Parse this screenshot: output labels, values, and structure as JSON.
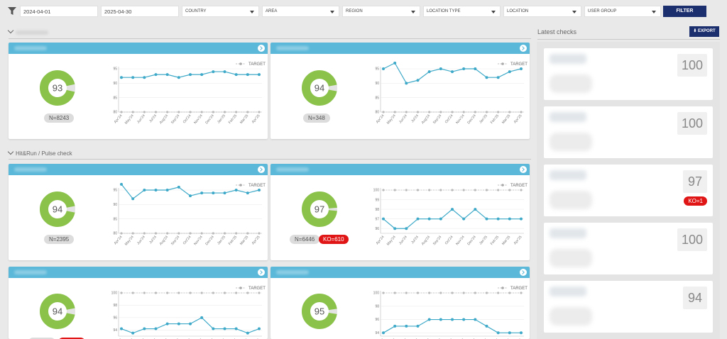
{
  "filters": {
    "date_from": "2024-04-01",
    "date_to": "2025-04-30",
    "selects": [
      "COUNTRY",
      "AREA",
      "REGION",
      "LOCATION TYPE",
      "LOCATION",
      "USER GROUP"
    ],
    "filter_button": "FILTER"
  },
  "section2": {
    "title": "Hit&Run / Pulse check"
  },
  "legend": {
    "target": "TARGET"
  },
  "months": [
    "Apr'24",
    "May'24",
    "Jun'24",
    "Jul'24",
    "Aug'24",
    "Sep'24",
    "Oct'24",
    "Nov'24",
    "Dec'24",
    "Jan'25",
    "Feb'25",
    "Mar'25",
    "Apr'25"
  ],
  "cards": [
    {
      "score": 93,
      "n": "N=8243",
      "ko": ""
    },
    {
      "score": 94,
      "n": "N=348",
      "ko": ""
    },
    {
      "score": 94,
      "n": "N=2395",
      "ko": ""
    },
    {
      "score": 97,
      "n": "N=6446",
      "ko": "KO=610"
    },
    {
      "score": 94,
      "n": "",
      "ko": ""
    },
    {
      "score": 95,
      "n": "",
      "ko": ""
    }
  ],
  "chart_data": [
    {
      "type": "line",
      "ylim": [
        80,
        95
      ],
      "yticks": [
        80,
        85,
        90,
        95
      ],
      "series": [
        {
          "values": [
            92,
            92,
            92,
            93,
            93,
            92,
            93,
            93,
            94,
            94,
            93,
            93,
            93
          ]
        },
        {
          "name": "TARGET",
          "values": [
            80,
            80,
            80,
            80,
            80,
            80,
            80,
            80,
            80,
            80,
            80,
            80,
            80
          ]
        }
      ]
    },
    {
      "type": "line",
      "ylim": [
        80,
        95
      ],
      "yticks": [
        80,
        85,
        90,
        95
      ],
      "series": [
        {
          "values": [
            95,
            97,
            90,
            91,
            94,
            95,
            94,
            95,
            95,
            92,
            92,
            94,
            95
          ]
        },
        {
          "name": "TARGET",
          "values": [
            80,
            80,
            80,
            80,
            80,
            80,
            80,
            80,
            80,
            80,
            80,
            80,
            80
          ]
        }
      ]
    },
    {
      "type": "line",
      "ylim": [
        80,
        95
      ],
      "yticks": [
        80,
        85,
        90,
        95
      ],
      "series": [
        {
          "values": [
            97,
            92,
            95,
            95,
            95,
            96,
            93,
            94,
            94,
            94,
            95,
            94,
            95
          ]
        },
        {
          "name": "TARGET",
          "values": [
            80,
            80,
            80,
            80,
            80,
            80,
            80,
            80,
            80,
            80,
            80,
            80,
            80
          ]
        }
      ]
    },
    {
      "type": "line",
      "ylim": [
        95.5,
        100
      ],
      "yticks": [
        96,
        97,
        98,
        99,
        100
      ],
      "series": [
        {
          "values": [
            97,
            96,
            96,
            97,
            97,
            97,
            98,
            97,
            98,
            97,
            97,
            97,
            97
          ]
        },
        {
          "name": "TARGET",
          "values": [
            100,
            100,
            100,
            100,
            100,
            100,
            100,
            100,
            100,
            100,
            100,
            100,
            100
          ]
        }
      ]
    },
    {
      "type": "line",
      "ylim": [
        93,
        100
      ],
      "yticks": [
        94,
        96,
        98,
        100
      ],
      "series": [
        {
          "values": [
            94.2,
            93.5,
            94.2,
            94.2,
            95,
            95,
            95,
            96,
            94.2,
            94.2,
            94.2,
            93.5,
            94.2
          ]
        },
        {
          "name": "TARGET",
          "values": [
            100,
            100,
            100,
            100,
            100,
            100,
            100,
            100,
            100,
            100,
            100,
            100,
            100
          ]
        }
      ]
    },
    {
      "type": "line",
      "ylim": [
        93.5,
        100
      ],
      "yticks": [
        94,
        96,
        98,
        100
      ],
      "series": [
        {
          "values": [
            94,
            95,
            95,
            95,
            96,
            96,
            96,
            96,
            96,
            95,
            94,
            94,
            94
          ]
        },
        {
          "name": "TARGET",
          "values": [
            100,
            100,
            100,
            100,
            100,
            100,
            100,
            100,
            100,
            100,
            100,
            100,
            100
          ]
        }
      ]
    }
  ],
  "right_panel": {
    "title": "Latest checks",
    "export_label": "EXPORT",
    "checks": [
      {
        "score": "100",
        "ko": ""
      },
      {
        "score": "100",
        "ko": ""
      },
      {
        "score": "97",
        "ko": "KO=1"
      },
      {
        "score": "100",
        "ko": ""
      },
      {
        "score": "94",
        "ko": ""
      }
    ]
  },
  "colors": {
    "accent": "#5bb8d9",
    "navy": "#1b2e6e",
    "donut_green": "#8bc34a",
    "ko_red": "#e01616"
  }
}
